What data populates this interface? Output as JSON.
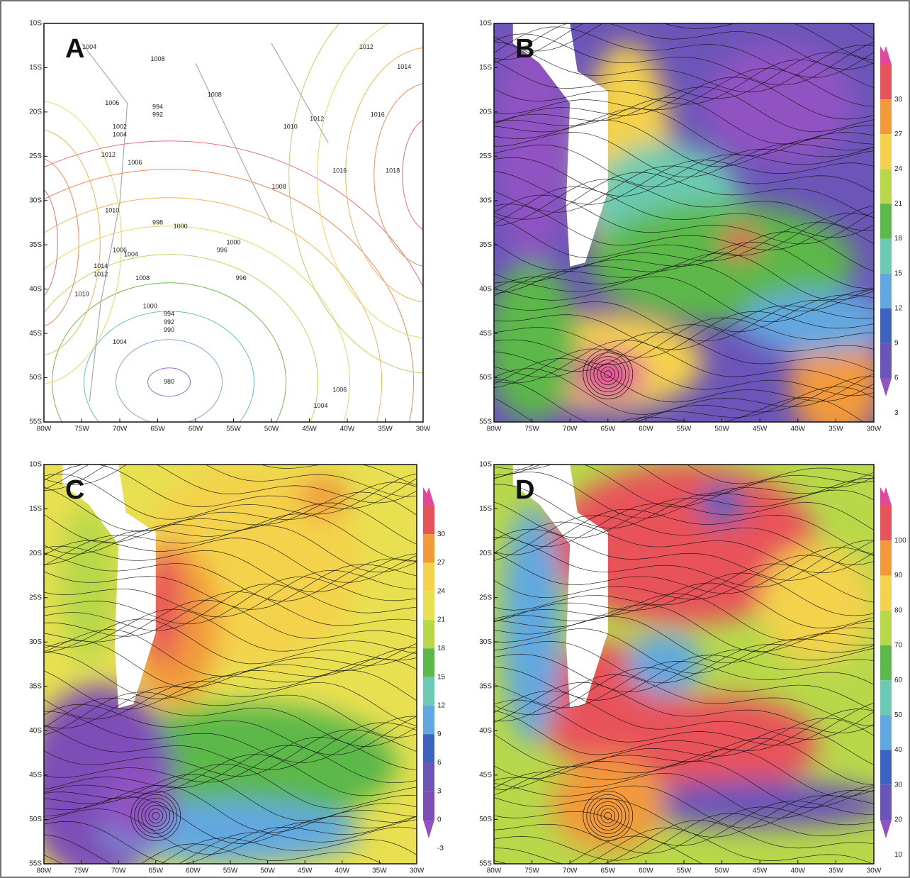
{
  "lat_ticks": [
    "10S",
    "15S",
    "20S",
    "25S",
    "30S",
    "35S",
    "40S",
    "45S",
    "50S",
    "55S"
  ],
  "lon_ticks": [
    "80W",
    "75W",
    "70W",
    "65W",
    "60W",
    "55W",
    "50W",
    "45W",
    "40W",
    "35W",
    "30W"
  ],
  "panels": [
    {
      "label": "A",
      "contour_labels": [
        "1004",
        "1008",
        "1012",
        "1014",
        "1008",
        "1006",
        "994",
        "992",
        "1002",
        "1004",
        "1012",
        "1006",
        "1010",
        "1016",
        "1012",
        "1016",
        "1018",
        "1008",
        "1010",
        "998",
        "1000",
        "996",
        "1000",
        "996",
        "1014",
        "1012",
        "1010",
        "1004",
        "1000",
        "994",
        "992",
        "990",
        "1006",
        "1004",
        "980",
        "1006",
        "1004",
        "1008"
      ]
    },
    {
      "label": "B",
      "colorbar": {
        "labels": [
          30,
          27,
          24,
          21,
          18,
          15,
          12,
          9,
          6,
          3
        ],
        "colors": [
          "#e2479b",
          "#e8525a",
          "#f29a3a",
          "#f4d24c",
          "#b8d84a",
          "#5cb848",
          "#6ccab2",
          "#62a8e0",
          "#3e62c0",
          "#6b55b8",
          "#9152c2"
        ]
      }
    },
    {
      "label": "C",
      "colorbar": {
        "labels": [
          30,
          27,
          24,
          21,
          18,
          15,
          12,
          9,
          6,
          3,
          0,
          -3
        ],
        "colors": [
          "#e2479b",
          "#e8525a",
          "#f29a3a",
          "#f4d24c",
          "#e8e050",
          "#b8d84a",
          "#5cb848",
          "#6ccab2",
          "#62a8e0",
          "#3e62c0",
          "#6b55b8",
          "#7e4eb8",
          "#9152c2"
        ]
      }
    },
    {
      "label": "D",
      "colorbar": {
        "labels": [
          100,
          90,
          80,
          70,
          60,
          50,
          40,
          30,
          20,
          10
        ],
        "colors": [
          "#e2479b",
          "#e8525a",
          "#f29a3a",
          "#f4d24c",
          "#b8d84a",
          "#5cb848",
          "#6ccab2",
          "#62a8e0",
          "#3e62c0",
          "#6b55b8",
          "#9152c2"
        ]
      }
    }
  ]
}
